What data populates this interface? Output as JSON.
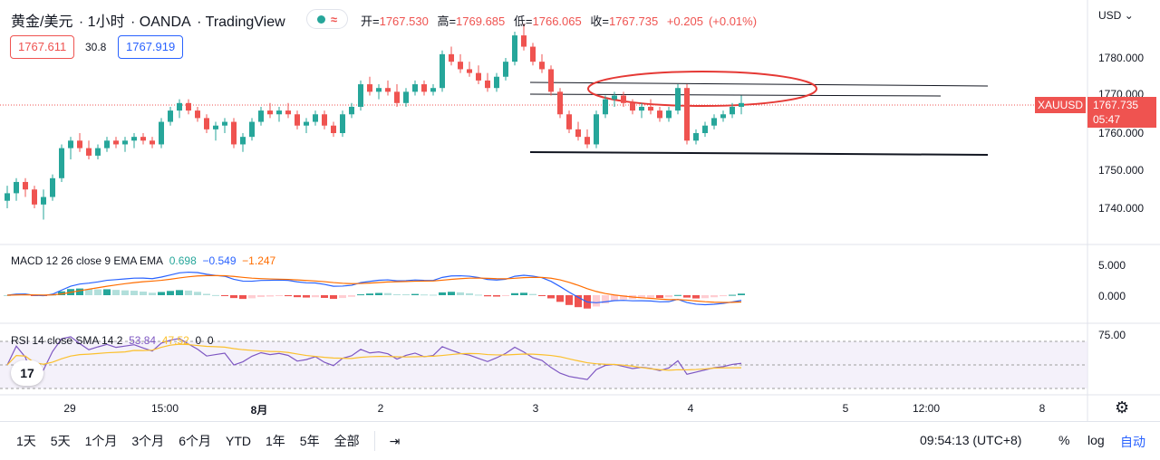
{
  "header": {
    "symbol": "黄金/美元",
    "interval": "1小时",
    "broker": "OANDA",
    "platform": "TradingView",
    "status_wave": "≈",
    "ohlc": {
      "open_label": "开=",
      "open": "1767.530",
      "high_label": "高=",
      "high": "1769.685",
      "low_label": "低=",
      "low": "1766.065",
      "close_label": "收=",
      "close": "1767.735",
      "change": "+0.205",
      "change_pct": "(+0.01%)"
    },
    "sell_price": "1767.611",
    "spread": "30.8",
    "buy_price": "1767.919",
    "currency": "USD"
  },
  "price_axis": {
    "labels": [
      "1780.000",
      "1770.000",
      "1760.000",
      "1750.000",
      "1740.000"
    ],
    "symbol_tag": "XAUUSD",
    "last_price": "1767.735",
    "countdown": "05:47"
  },
  "macd": {
    "legend_name": "MACD 12 26 close 9 EMA EMA",
    "v1": "0.698",
    "v2": "−0.549",
    "v3": "−1.247",
    "axis": [
      "5.000",
      "0.000"
    ]
  },
  "rsi": {
    "legend_name": "RSI 14 close SMA 14 2",
    "v1": "53.84",
    "v2": "47.52",
    "v3": "0",
    "v4": "0",
    "axis": [
      "75.00"
    ]
  },
  "time_axis": [
    "29",
    "15:00",
    "8月",
    "2",
    "3",
    "4",
    "5",
    "12:00",
    "8"
  ],
  "bottom_bar": {
    "ranges": [
      "1天",
      "5天",
      "1个月",
      "3个月",
      "6个月",
      "YTD",
      "1年",
      "5年",
      "全部"
    ],
    "clock": "09:54:13 (UTC+8)",
    "percent": "%",
    "log": "log",
    "auto": "自动"
  },
  "logo_text": "17",
  "colors": {
    "up": "#26a69a",
    "down": "#ef5350",
    "accent": "#2962ff"
  },
  "chart_data": {
    "type": "candlestick",
    "title": "黄金/美元 · 1小时 · OANDA",
    "ylim": [
      1735,
      1790
    ],
    "candles": [
      [
        1742,
        1746,
        1740,
        1744
      ],
      [
        1744,
        1748,
        1742,
        1747
      ],
      [
        1747,
        1748,
        1743,
        1745
      ],
      [
        1745,
        1746,
        1740,
        1741
      ],
      [
        1741,
        1745,
        1737,
        1743
      ],
      [
        1743,
        1749,
        1742,
        1748
      ],
      [
        1748,
        1757,
        1747,
        1756
      ],
      [
        1756,
        1759,
        1753,
        1758
      ],
      [
        1758,
        1760,
        1755,
        1756
      ],
      [
        1756,
        1758,
        1753,
        1754
      ],
      [
        1754,
        1757,
        1753,
        1756
      ],
      [
        1756,
        1759,
        1755,
        1758
      ],
      [
        1758,
        1759,
        1756,
        1757
      ],
      [
        1757,
        1759,
        1755,
        1758
      ],
      [
        1758,
        1760,
        1756,
        1759
      ],
      [
        1759,
        1760,
        1757,
        1758
      ],
      [
        1758,
        1759,
        1756,
        1757
      ],
      [
        1757,
        1764,
        1756,
        1763
      ],
      [
        1763,
        1767,
        1762,
        1766
      ],
      [
        1766,
        1769,
        1764,
        1768
      ],
      [
        1768,
        1769,
        1765,
        1766
      ],
      [
        1766,
        1767,
        1763,
        1764
      ],
      [
        1764,
        1765,
        1760,
        1761
      ],
      [
        1761,
        1763,
        1758,
        1762
      ],
      [
        1762,
        1764,
        1760,
        1763
      ],
      [
        1763,
        1764,
        1756,
        1757
      ],
      [
        1757,
        1760,
        1755,
        1759
      ],
      [
        1759,
        1764,
        1758,
        1763
      ],
      [
        1763,
        1767,
        1762,
        1766
      ],
      [
        1766,
        1768,
        1764,
        1765
      ],
      [
        1765,
        1767,
        1763,
        1766
      ],
      [
        1766,
        1768,
        1764,
        1765
      ],
      [
        1765,
        1766,
        1761,
        1762
      ],
      [
        1762,
        1764,
        1760,
        1763
      ],
      [
        1763,
        1766,
        1762,
        1765
      ],
      [
        1765,
        1766,
        1761,
        1762
      ],
      [
        1762,
        1763,
        1759,
        1760
      ],
      [
        1760,
        1766,
        1759,
        1765
      ],
      [
        1765,
        1768,
        1764,
        1767
      ],
      [
        1767,
        1774,
        1766,
        1773
      ],
      [
        1773,
        1775,
        1770,
        1771
      ],
      [
        1771,
        1773,
        1769,
        1772
      ],
      [
        1772,
        1774,
        1770,
        1771
      ],
      [
        1771,
        1773,
        1767,
        1768
      ],
      [
        1768,
        1772,
        1767,
        1771
      ],
      [
        1771,
        1774,
        1770,
        1773
      ],
      [
        1773,
        1774,
        1770,
        1771
      ],
      [
        1771,
        1773,
        1770,
        1772
      ],
      [
        1772,
        1782,
        1771,
        1781
      ],
      [
        1781,
        1783,
        1778,
        1779
      ],
      [
        1779,
        1781,
        1776,
        1777
      ],
      [
        1777,
        1779,
        1775,
        1776
      ],
      [
        1776,
        1778,
        1773,
        1774
      ],
      [
        1774,
        1776,
        1771,
        1772
      ],
      [
        1772,
        1776,
        1771,
        1775
      ],
      [
        1775,
        1780,
        1774,
        1779
      ],
      [
        1779,
        1787,
        1778,
        1786
      ],
      [
        1786,
        1789,
        1782,
        1783
      ],
      [
        1783,
        1784,
        1778,
        1779
      ],
      [
        1779,
        1781,
        1776,
        1777
      ],
      [
        1777,
        1778,
        1770,
        1771
      ],
      [
        1771,
        1772,
        1764,
        1765
      ],
      [
        1765,
        1766,
        1760,
        1761
      ],
      [
        1761,
        1763,
        1758,
        1759
      ],
      [
        1759,
        1761,
        1756,
        1757
      ],
      [
        1757,
        1766,
        1756,
        1765
      ],
      [
        1765,
        1770,
        1764,
        1769
      ],
      [
        1769,
        1771,
        1767,
        1770
      ],
      [
        1770,
        1771,
        1767,
        1768
      ],
      [
        1768,
        1769,
        1765,
        1766
      ],
      [
        1766,
        1768,
        1764,
        1767
      ],
      [
        1767,
        1769,
        1765,
        1766
      ],
      [
        1766,
        1767,
        1763,
        1764
      ],
      [
        1764,
        1767,
        1763,
        1766
      ],
      [
        1766,
        1773,
        1765,
        1772
      ],
      [
        1772,
        1773,
        1757,
        1758
      ],
      [
        1758,
        1761,
        1757,
        1760
      ],
      [
        1760,
        1763,
        1759,
        1762
      ],
      [
        1762,
        1765,
        1761,
        1764
      ],
      [
        1764,
        1766,
        1763,
        1765
      ],
      [
        1765,
        1768,
        1764,
        1767
      ],
      [
        1767,
        1770,
        1765,
        1768
      ]
    ]
  }
}
